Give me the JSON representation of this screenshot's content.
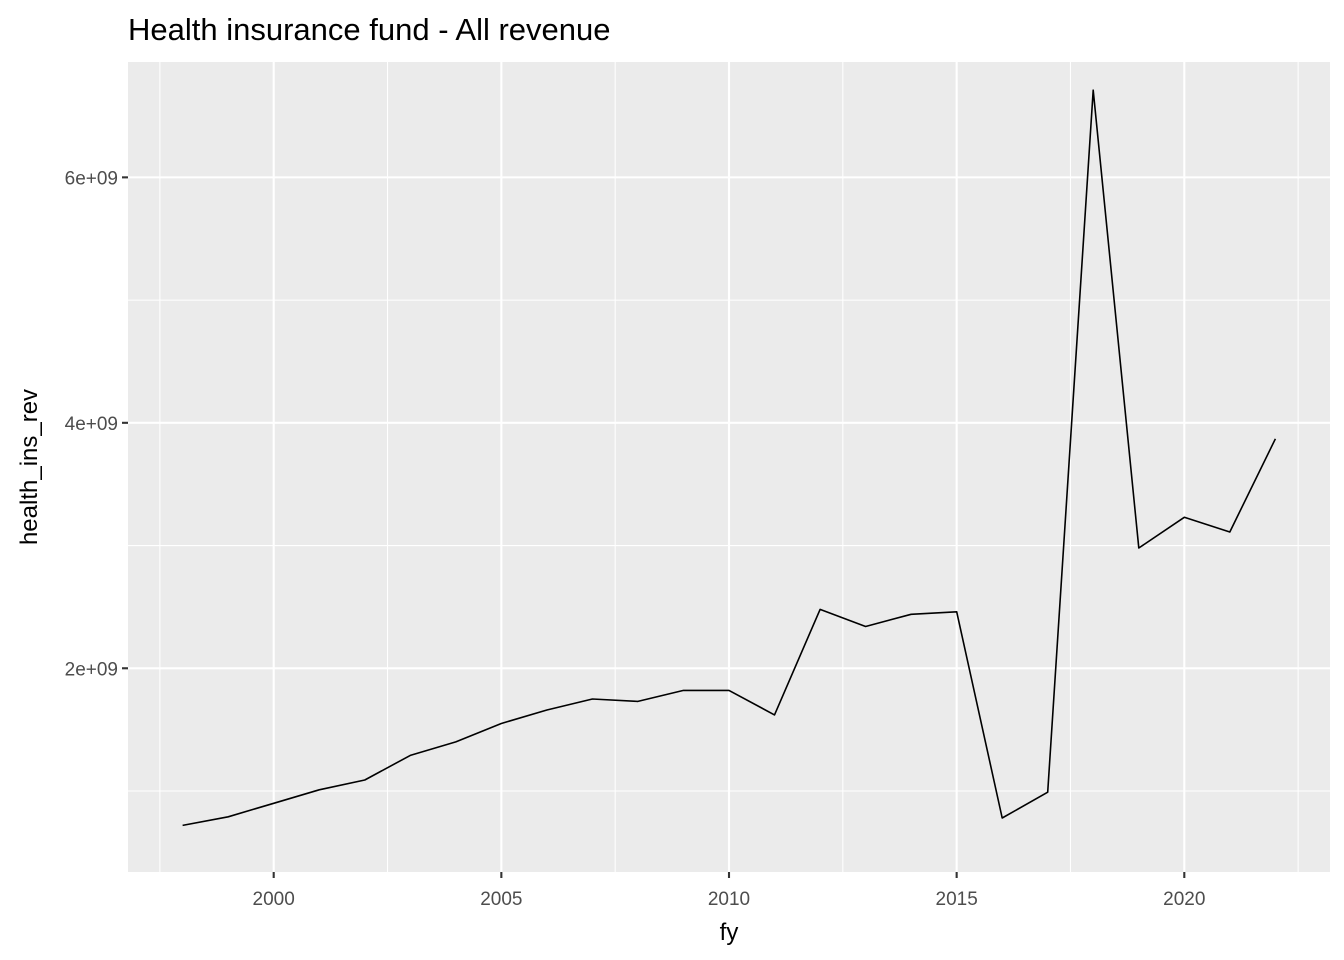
{
  "chart_data": {
    "type": "line",
    "title": "Health insurance fund - All revenue",
    "xlabel": "fy",
    "ylabel": "health_ins_rev",
    "grid": true,
    "legend": "none",
    "xlim": [
      1996.8,
      2023.2
    ],
    "ylim": [
      340000000,
      6940000000
    ],
    "x_ticks": [
      2000,
      2005,
      2010,
      2015,
      2020
    ],
    "x_tick_labels": [
      "2000",
      "2005",
      "2010",
      "2015",
      "2020"
    ],
    "y_ticks": [
      2000000000,
      4000000000,
      6000000000
    ],
    "y_tick_labels": [
      "2e+09",
      "4e+09",
      "6e+09"
    ],
    "x": [
      1998,
      1999,
      2000,
      2001,
      2002,
      2003,
      2004,
      2005,
      2006,
      2007,
      2008,
      2009,
      2010,
      2011,
      2012,
      2013,
      2014,
      2015,
      2016,
      2017,
      2018,
      2019,
      2020,
      2021,
      2022
    ],
    "series": [
      {
        "values": [
          720000000,
          790000000,
          900000000,
          1010000000,
          1090000000,
          1290000000,
          1400000000,
          1550000000,
          1660000000,
          1750000000,
          1730000000,
          1820000000,
          1820000000,
          1620000000,
          2480000000,
          2340000000,
          2440000000,
          2460000000,
          780000000,
          990000000,
          6710000000,
          2980000000,
          3230000000,
          3110000000,
          3870000000
        ],
        "color": "#000000"
      }
    ],
    "panel_color": "#ebebeb",
    "grid_color": "#ffffff"
  }
}
